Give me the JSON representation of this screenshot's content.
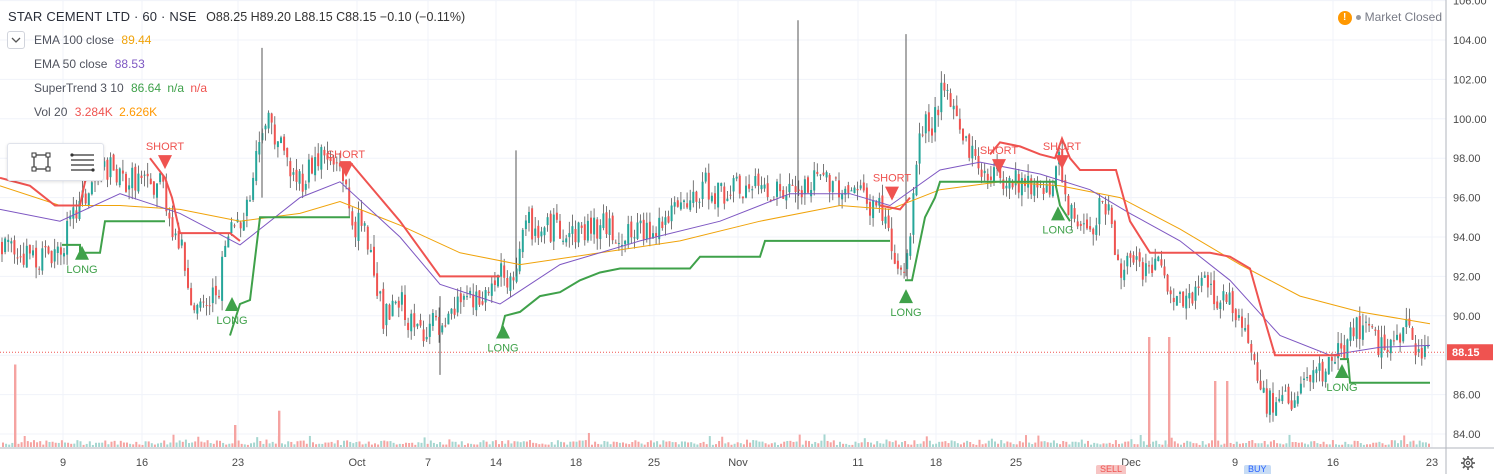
{
  "header": {
    "symbol": "STAR CEMENT LTD · 60 · NSE",
    "ohlc": "O88.25  H89.20  L88.15  C88.15  −0.10 (−0.11%)",
    "market_status": "Market Closed",
    "indicators": [
      {
        "name": "EMA 100 close",
        "value": "89.44",
        "color": "#f0a30a"
      },
      {
        "name": "EMA 50 close",
        "value": "88.53",
        "color": "#7e57c2"
      },
      {
        "name": "SuperTrend 3 10",
        "value": "86.64",
        "extra": "n/a",
        "extra2": "n/a",
        "color": "#3fa14a",
        "color2": "#ef5350"
      },
      {
        "name": "Vol 20",
        "value": "3.284K",
        "value2": "2.626K",
        "color": "#ef5350",
        "color2": "#ff9800"
      }
    ]
  },
  "bottom_tags": {
    "sell": "SELL",
    "buy": "BUY"
  },
  "chart_data": {
    "type": "candlestick",
    "ylim": [
      83,
      106
    ],
    "y_ticks": [
      "84.00",
      "86.00",
      "88.00",
      "90.00",
      "92.00",
      "94.00",
      "96.00",
      "98.00",
      "100.00",
      "102.00",
      "104.00",
      "106.00"
    ],
    "x_ticks": [
      "9",
      "16",
      "23",
      "Oct",
      "7",
      "14",
      "18",
      "25",
      "Nov",
      "11",
      "18",
      "25",
      "Dec",
      "9",
      "16",
      "23"
    ],
    "last_price": "88.15",
    "colors": {
      "up": "#26a69a",
      "down": "#ef5350",
      "wick": "#555555",
      "ema100": "#f0a30a",
      "ema50": "#7e57c2",
      "st_up": "#3fa14a",
      "st_down": "#ef5350",
      "vol_up": "#a5d6d0",
      "vol_down": "#f5a3a1",
      "price_line": "#ef5350"
    },
    "close_path": [
      [
        0,
        93.6
      ],
      [
        20,
        93.2
      ],
      [
        40,
        93.0
      ],
      [
        60,
        93.5
      ],
      [
        75,
        95.2
      ],
      [
        90,
        96.5
      ],
      [
        105,
        97.6
      ],
      [
        120,
        96.8
      ],
      [
        135,
        97.0
      ],
      [
        150,
        96.4
      ],
      [
        160,
        97.0
      ],
      [
        170,
        94.8
      ],
      [
        180,
        93.4
      ],
      [
        190,
        91.2
      ],
      [
        198,
        90.0
      ],
      [
        208,
        90.6
      ],
      [
        218,
        91.6
      ],
      [
        228,
        94.2
      ],
      [
        238,
        95.0
      ],
      [
        248,
        95.8
      ],
      [
        255,
        98.0
      ],
      [
        262,
        100.1
      ],
      [
        272,
        99.6
      ],
      [
        282,
        98.4
      ],
      [
        292,
        97.0
      ],
      [
        302,
        97.0
      ],
      [
        312,
        97.8
      ],
      [
        322,
        98.2
      ],
      [
        330,
        97.6
      ],
      [
        340,
        97.8
      ],
      [
        350,
        94.8
      ],
      [
        362,
        94.4
      ],
      [
        372,
        93.0
      ],
      [
        382,
        89.8
      ],
      [
        392,
        90.2
      ],
      [
        402,
        90.6
      ],
      [
        412,
        89.2
      ],
      [
        422,
        89.4
      ],
      [
        432,
        89.6
      ],
      [
        442,
        88.8
      ],
      [
        452,
        90.0
      ],
      [
        462,
        91.2
      ],
      [
        472,
        90.4
      ],
      [
        482,
        90.8
      ],
      [
        492,
        91.6
      ],
      [
        500,
        92.1
      ],
      [
        508,
        91.0
      ],
      [
        518,
        93.4
      ],
      [
        528,
        94.6
      ],
      [
        540,
        94.2
      ],
      [
        555,
        94.6
      ],
      [
        570,
        94.2
      ],
      [
        585,
        94.4
      ],
      [
        600,
        94.6
      ],
      [
        615,
        94.2
      ],
      [
        630,
        94.0
      ],
      [
        645,
        94.4
      ],
      [
        660,
        94.8
      ],
      [
        675,
        95.2
      ],
      [
        690,
        95.6
      ],
      [
        705,
        96.6
      ],
      [
        720,
        96.2
      ],
      [
        735,
        96.4
      ],
      [
        750,
        96.4
      ],
      [
        765,
        96.6
      ],
      [
        780,
        96.2
      ],
      [
        795,
        96.2
      ],
      [
        810,
        96.6
      ],
      [
        825,
        97.0
      ],
      [
        840,
        96.6
      ],
      [
        855,
        96.4
      ],
      [
        870,
        95.6
      ],
      [
        882,
        95.4
      ],
      [
        890,
        93.4
      ],
      [
        898,
        92.0
      ],
      [
        906,
        92.4
      ],
      [
        914,
        97.2
      ],
      [
        922,
        99.8
      ],
      [
        930,
        99.6
      ],
      [
        940,
        101.2
      ],
      [
        950,
        100.6
      ],
      [
        960,
        99.6
      ],
      [
        968,
        98.6
      ],
      [
        978,
        97.4
      ],
      [
        990,
        97.2
      ],
      [
        1002,
        97.0
      ],
      [
        1012,
        97.0
      ],
      [
        1022,
        96.8
      ],
      [
        1032,
        96.6
      ],
      [
        1042,
        96.8
      ],
      [
        1052,
        96.6
      ],
      [
        1058,
        97.8
      ],
      [
        1064,
        95.6
      ],
      [
        1072,
        94.8
      ],
      [
        1082,
        94.8
      ],
      [
        1092,
        94.6
      ],
      [
        1100,
        96.2
      ],
      [
        1108,
        95.2
      ],
      [
        1116,
        92.6
      ],
      [
        1126,
        92.6
      ],
      [
        1136,
        92.4
      ],
      [
        1146,
        92.4
      ],
      [
        1156,
        92.6
      ],
      [
        1166,
        91.4
      ],
      [
        1176,
        90.6
      ],
      [
        1186,
        90.8
      ],
      [
        1196,
        91.2
      ],
      [
        1206,
        92.0
      ],
      [
        1216,
        90.8
      ],
      [
        1226,
        91.0
      ],
      [
        1236,
        90.2
      ],
      [
        1246,
        89.4
      ],
      [
        1256,
        86.8
      ],
      [
        1266,
        85.6
      ],
      [
        1276,
        85.4
      ],
      [
        1286,
        85.8
      ],
      [
        1296,
        86.0
      ],
      [
        1306,
        86.6
      ],
      [
        1316,
        86.8
      ],
      [
        1326,
        87.2
      ],
      [
        1336,
        88.0
      ],
      [
        1346,
        88.6
      ],
      [
        1356,
        89.6
      ],
      [
        1366,
        89.0
      ],
      [
        1376,
        88.6
      ],
      [
        1386,
        88.6
      ],
      [
        1396,
        88.4
      ],
      [
        1406,
        89.2
      ],
      [
        1416,
        88.6
      ],
      [
        1426,
        88.2
      ]
    ],
    "ema100": [
      [
        0,
        96.6
      ],
      [
        60,
        95.6
      ],
      [
        120,
        95.6
      ],
      [
        180,
        95.4
      ],
      [
        240,
        94.8
      ],
      [
        300,
        95.2
      ],
      [
        340,
        95.8
      ],
      [
        400,
        94.6
      ],
      [
        460,
        93.2
      ],
      [
        520,
        92.6
      ],
      [
        600,
        93.2
      ],
      [
        680,
        93.8
      ],
      [
        760,
        94.8
      ],
      [
        840,
        95.6
      ],
      [
        890,
        95.4
      ],
      [
        940,
        96.4
      ],
      [
        1000,
        96.8
      ],
      [
        1060,
        96.6
      ],
      [
        1120,
        96.0
      ],
      [
        1180,
        94.4
      ],
      [
        1240,
        92.6
      ],
      [
        1300,
        91.0
      ],
      [
        1360,
        90.2
      ],
      [
        1430,
        89.6
      ]
    ],
    "ema50": [
      [
        0,
        95.4
      ],
      [
        60,
        94.8
      ],
      [
        120,
        96.2
      ],
      [
        180,
        95.2
      ],
      [
        240,
        93.6
      ],
      [
        300,
        96.0
      ],
      [
        340,
        96.8
      ],
      [
        400,
        94.0
      ],
      [
        440,
        91.6
      ],
      [
        500,
        90.6
      ],
      [
        560,
        92.6
      ],
      [
        640,
        93.8
      ],
      [
        720,
        94.8
      ],
      [
        790,
        96.2
      ],
      [
        850,
        96.2
      ],
      [
        890,
        95.6
      ],
      [
        940,
        97.4
      ],
      [
        980,
        97.8
      ],
      [
        1040,
        97.2
      ],
      [
        1090,
        96.4
      ],
      [
        1130,
        95.2
      ],
      [
        1180,
        93.8
      ],
      [
        1230,
        91.8
      ],
      [
        1280,
        89.0
      ],
      [
        1330,
        88.0
      ],
      [
        1380,
        88.4
      ],
      [
        1430,
        88.5
      ]
    ],
    "st_long": [
      [
        [
          62,
          93.6
        ],
        [
          80,
          93.6
        ],
        [
          80,
          93.2
        ],
        [
          100,
          93.2
        ],
        [
          105,
          94.8
        ],
        [
          165,
          94.8
        ]
      ],
      [
        [
          230,
          89.0
        ],
        [
          240,
          90.6
        ],
        [
          250,
          90.8
        ],
        [
          260,
          95.0
        ],
        [
          350,
          95.0
        ]
      ],
      [
        [
          500,
          89.0
        ],
        [
          505,
          90.0
        ],
        [
          520,
          90.2
        ],
        [
          540,
          91.0
        ],
        [
          560,
          91.2
        ],
        [
          580,
          91.8
        ],
        [
          600,
          92.2
        ],
        [
          620,
          92.4
        ],
        [
          690,
          92.4
        ],
        [
          700,
          93.0
        ],
        [
          760,
          93.0
        ],
        [
          765,
          93.8
        ],
        [
          890,
          93.8
        ]
      ],
      [
        [
          905,
          91.8
        ],
        [
          912,
          91.8
        ],
        [
          925,
          95.0
        ],
        [
          935,
          96.0
        ],
        [
          940,
          96.8
        ],
        [
          1055,
          96.8
        ],
        [
          1060,
          95.6
        ],
        [
          1070,
          94.8
        ]
      ],
      [
        [
          1340,
          87.8
        ],
        [
          1348,
          87.8
        ],
        [
          1350,
          86.6
        ],
        [
          1430,
          86.6
        ]
      ]
    ],
    "st_short": [
      [
        [
          0,
          97.0
        ],
        [
          30,
          96.6
        ],
        [
          55,
          95.6
        ],
        [
          80,
          95.6
        ],
        [
          85,
          96.8
        ],
        [
          95,
          98.0
        ]
      ],
      [
        [
          150,
          98.0
        ],
        [
          165,
          97.0
        ],
        [
          172,
          96.0
        ],
        [
          180,
          94.2
        ],
        [
          230,
          94.2
        ],
        [
          240,
          93.8
        ]
      ],
      [
        [
          340,
          97.8
        ],
        [
          350,
          97.8
        ],
        [
          360,
          97.2
        ],
        [
          380,
          96.0
        ],
        [
          400,
          94.8
        ],
        [
          420,
          93.4
        ],
        [
          440,
          92.0
        ],
        [
          500,
          92.0
        ]
      ],
      [
        [
          880,
          95.6
        ],
        [
          900,
          95.4
        ],
        [
          910,
          96.0
        ]
      ],
      [
        [
          990,
          98.2
        ],
        [
          1000,
          98.8
        ],
        [
          1020,
          98.6
        ],
        [
          1040,
          98.2
        ],
        [
          1055,
          98.0
        ],
        [
          1062,
          99.0
        ],
        [
          1070,
          98.0
        ],
        [
          1080,
          97.4
        ],
        [
          1116,
          97.4
        ],
        [
          1130,
          94.8
        ],
        [
          1150,
          93.2
        ],
        [
          1210,
          93.2
        ],
        [
          1230,
          93.0
        ],
        [
          1250,
          92.4
        ],
        [
          1260,
          90.6
        ],
        [
          1275,
          88.0
        ],
        [
          1340,
          88.0
        ]
      ]
    ],
    "signals": [
      {
        "type": "LONG",
        "x": 82,
        "y": 93.2
      },
      {
        "type": "SHORT",
        "x": 165,
        "y": 97.8
      },
      {
        "type": "LONG",
        "x": 232,
        "y": 90.6
      },
      {
        "type": "SHORT",
        "x": 346,
        "y": 97.4
      },
      {
        "type": "LONG",
        "x": 503,
        "y": 89.2
      },
      {
        "type": "SHORT",
        "x": 892,
        "y": 96.2
      },
      {
        "type": "LONG",
        "x": 906,
        "y": 91.0
      },
      {
        "type": "SHORT",
        "x": 999,
        "y": 97.6
      },
      {
        "type": "SHORT",
        "x": 1062,
        "y": 97.8
      },
      {
        "type": "LONG",
        "x": 1058,
        "y": 95.2
      },
      {
        "type": "LONG",
        "x": 1342,
        "y": 87.2
      }
    ],
    "spikes": [
      {
        "x": 262,
        "high": 103.6,
        "low": 96.0
      },
      {
        "x": 798,
        "high": 105.0,
        "low": 95.4
      },
      {
        "x": 906,
        "high": 104.3,
        "low": 92.0
      },
      {
        "x": 516,
        "high": 98.4,
        "low": 92.0
      },
      {
        "x": 440,
        "high": 91.0,
        "low": 87.0
      }
    ],
    "volume_spikes": [
      {
        "x": 14,
        "h": 0.75
      },
      {
        "x": 1148,
        "h": 1.0
      },
      {
        "x": 1168,
        "h": 1.0
      },
      {
        "x": 1214,
        "h": 0.6
      },
      {
        "x": 1226,
        "h": 0.6
      },
      {
        "x": 278,
        "h": 0.33
      },
      {
        "x": 234,
        "h": 0.2
      }
    ]
  }
}
